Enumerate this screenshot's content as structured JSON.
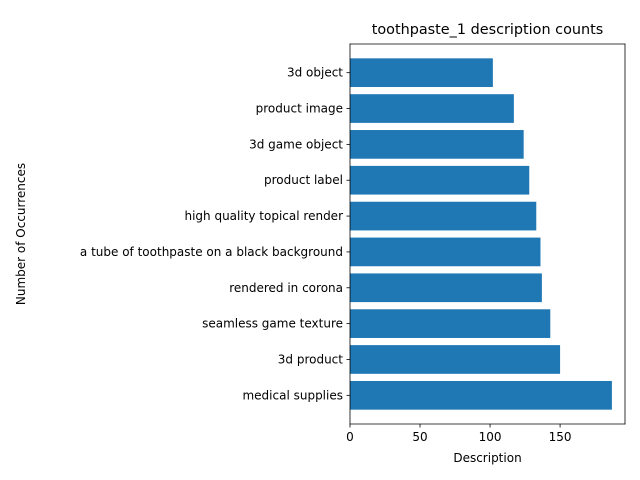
{
  "chart_data": {
    "type": "bar",
    "orientation": "horizontal",
    "title": "toothpaste_1 description counts",
    "xlabel": "Description",
    "ylabel": "Number of Occurrences",
    "categories": [
      "medical supplies",
      "3d product",
      "seamless game texture",
      "rendered in corona",
      "a tube of toothpaste on a black background",
      "high quality topical render",
      "product label",
      "3d game object",
      "product image",
      "3d object"
    ],
    "values": [
      187,
      150,
      143,
      137,
      136,
      133,
      128,
      124,
      117,
      102
    ],
    "xlim": [
      0,
      196.35
    ],
    "xticks": [
      0,
      50,
      100,
      150
    ],
    "bar_color": "#1f77b4",
    "grid": false,
    "legend": "none"
  }
}
